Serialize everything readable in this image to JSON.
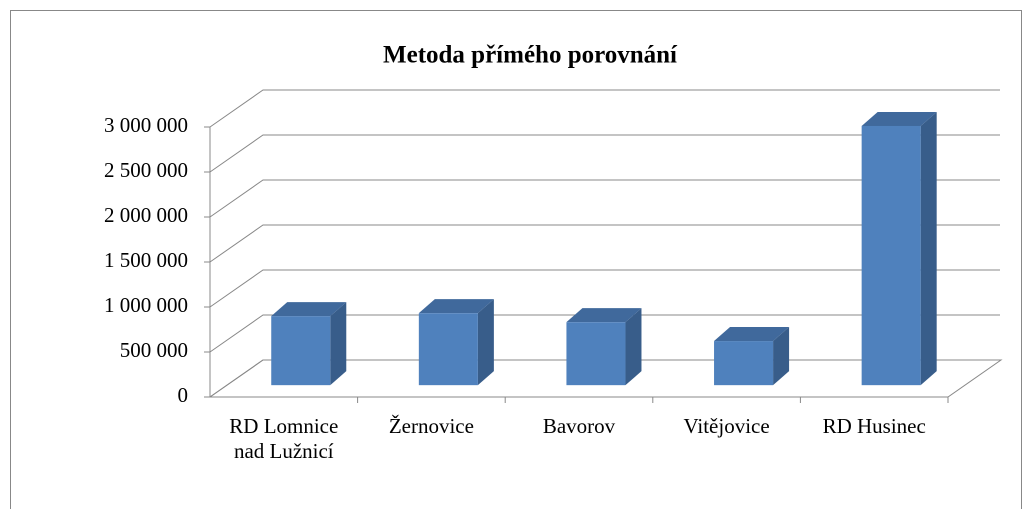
{
  "chart_data": {
    "type": "bar3d",
    "title": "Metoda přímého porovnání",
    "categories": [
      "RD Lomnice nad Lužnicí",
      "Žernovice",
      "Bavorov",
      "Vitějovice",
      "RD Husinec"
    ],
    "values": [
      767000,
      800000,
      700000,
      490000,
      2880000
    ],
    "color": "#4f81bd",
    "ylim": [
      0,
      3000000
    ],
    "yticks": [
      0,
      {
        "value": 500000,
        "label": "500 000"
      },
      {
        "value": 1000000,
        "label": "1 000 000"
      },
      {
        "value": 1500000,
        "label": "1 500 000"
      },
      {
        "value": 2000000,
        "label": "2 000 000"
      },
      {
        "value": 2500000,
        "label": "2 500 000"
      },
      {
        "value": 3000000,
        "label": "3 000 000"
      }
    ],
    "grid": true
  }
}
